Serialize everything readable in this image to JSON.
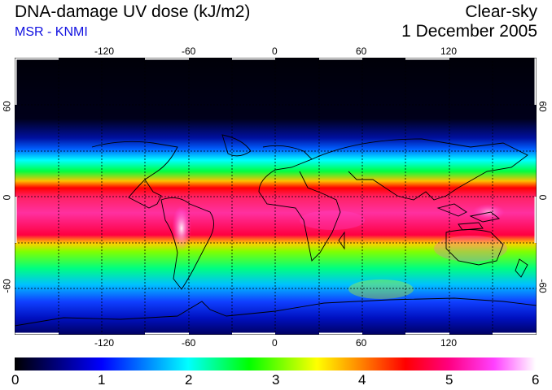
{
  "header": {
    "title": "DNA-damage UV dose (kJ/m2)",
    "credit": "MSR - KNMI",
    "sky": "Clear-sky",
    "date": "1 December 2005"
  },
  "map": {
    "lon_ticks_top": [
      "-120",
      "-60",
      "0",
      "60",
      "120"
    ],
    "lon_ticks_bottom": [
      "-120",
      "-60",
      "0",
      "60",
      "120"
    ],
    "lat_ticks_left": [
      "60",
      "0",
      "-60"
    ],
    "lat_ticks_right": [
      "60",
      "0",
      "-60"
    ]
  },
  "colorbar": {
    "labels": [
      "0",
      "1",
      "2",
      "3",
      "4",
      "5",
      "6"
    ],
    "min": 0,
    "max": 6
  },
  "colors": {
    "credit": "#1010e0",
    "scale": [
      "#000000",
      "#0000ff",
      "#00ffff",
      "#00ff00",
      "#ffff00",
      "#ff8000",
      "#ff0000",
      "#ff0080",
      "#ff40ff",
      "#ffffff"
    ]
  }
}
